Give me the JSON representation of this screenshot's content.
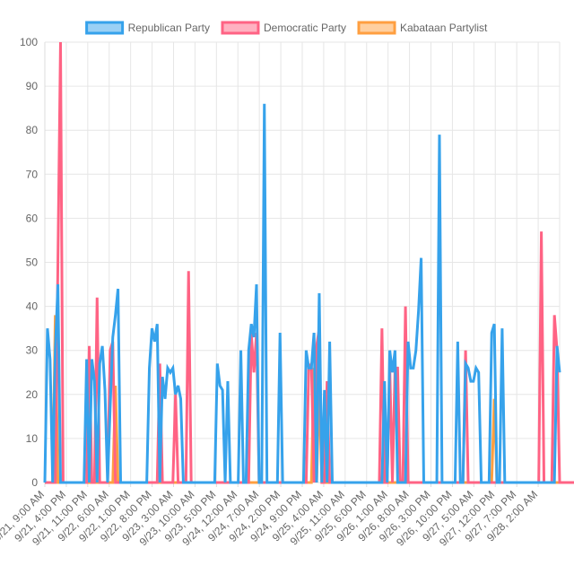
{
  "chart_data": {
    "type": "line",
    "title": "",
    "xlabel": "",
    "ylabel": "",
    "ylim": [
      0,
      100
    ],
    "yticks": [
      0,
      10,
      20,
      30,
      40,
      50,
      60,
      70,
      80,
      90,
      100
    ],
    "grid": true,
    "legend": "top",
    "x_tick_labels": [
      "9/21, 9:00 AM",
      "9/21, 4:00 PM",
      "9/21, 11:00 PM",
      "9/22, 6:00 AM",
      "9/22, 1:00 PM",
      "9/22, 8:00 PM",
      "9/23, 3:00 AM",
      "9/23, 10:00 AM",
      "9/23, 5:00 PM",
      "9/24, 12:00 AM",
      "9/24, 7:00 AM",
      "9/24, 2:00 PM",
      "9/24, 9:00 PM",
      "9/25, 4:00 AM",
      "9/25, 11:00 AM",
      "9/25, 6:00 PM",
      "9/26, 1:00 AM",
      "9/26, 8:00 AM",
      "9/26, 3:00 PM",
      "9/26, 10:00 PM",
      "9/27, 5:00 AM",
      "9/27, 12:00 PM",
      "9/27, 7:00 PM",
      "9/28, 2:00 AM"
    ],
    "series": [
      {
        "name": "Republican Party",
        "color": "#36a2eb",
        "fill": "#9ad0f5",
        "values": [
          0,
          35,
          28,
          0,
          30,
          45,
          0,
          0,
          0,
          0,
          0,
          0,
          0,
          0,
          0,
          0,
          28,
          0,
          28,
          23,
          0,
          27,
          31,
          21,
          0,
          17,
          33,
          38,
          44,
          0,
          0,
          0,
          0,
          0,
          0,
          0,
          0,
          0,
          0,
          0,
          26,
          35,
          32,
          36,
          0,
          24,
          19,
          26,
          25,
          26,
          20,
          22,
          19,
          0,
          0,
          0,
          0,
          0,
          0,
          0,
          0,
          0,
          0,
          0,
          0,
          0,
          27,
          22,
          21,
          0,
          23,
          0,
          0,
          0,
          0,
          30,
          0,
          0,
          30,
          36,
          33,
          45,
          0,
          0,
          86,
          0,
          0,
          0,
          0,
          0,
          34,
          0,
          0,
          0,
          0,
          0,
          0,
          0,
          0,
          0,
          30,
          26,
          26,
          34,
          0,
          43,
          0,
          21,
          0,
          32,
          0,
          0,
          0,
          0,
          0,
          0,
          0,
          0,
          0,
          0,
          0,
          0,
          0,
          0,
          0,
          0,
          0,
          0,
          0,
          0,
          23,
          0,
          30,
          25,
          30,
          0,
          0,
          0,
          0,
          32,
          26,
          26,
          30,
          39,
          51,
          0,
          0,
          0,
          0,
          0,
          0,
          79,
          0,
          0,
          0,
          0,
          0,
          0,
          32,
          0,
          0,
          27,
          26,
          23,
          23,
          26,
          25,
          0,
          0,
          0,
          0,
          34,
          36,
          0,
          0,
          35,
          0,
          0,
          0,
          0,
          0,
          0,
          0,
          0,
          0,
          0,
          0,
          0,
          0,
          0,
          0,
          0,
          0,
          0,
          0,
          0,
          31,
          25
        ]
      },
      {
        "name": "Democratic Party",
        "color": "#ff6384",
        "fill": "#ffb1c1",
        "values": [
          0,
          0,
          0,
          0,
          0,
          50,
          100,
          0,
          0,
          0,
          0,
          0,
          0,
          0,
          0,
          0,
          0,
          31,
          0,
          0,
          42,
          0,
          0,
          0,
          0,
          30,
          32,
          0,
          0,
          0,
          0,
          0,
          0,
          0,
          0,
          0,
          0,
          0,
          0,
          0,
          0,
          0,
          0,
          0,
          27,
          0,
          0,
          0,
          0,
          0,
          20,
          0,
          0,
          0,
          0,
          48,
          0,
          0,
          0,
          0,
          0,
          0,
          0,
          0,
          0,
          0,
          0,
          0,
          0,
          0,
          0,
          0,
          0,
          0,
          0,
          0,
          0,
          0,
          0,
          34,
          25,
          34,
          0,
          0,
          0,
          0,
          0,
          0,
          0,
          0,
          0,
          0,
          0,
          0,
          0,
          0,
          0,
          0,
          0,
          0,
          0,
          26,
          27,
          0,
          31,
          35,
          0,
          0,
          23,
          0,
          0,
          0,
          0,
          0,
          0,
          0,
          0,
          0,
          0,
          0,
          0,
          0,
          0,
          0,
          0,
          0,
          0,
          0,
          0,
          35,
          0,
          0,
          26,
          0,
          26,
          26,
          0,
          0,
          40,
          0,
          0,
          0,
          0,
          0,
          0,
          0,
          0,
          0,
          0,
          0,
          0,
          0,
          0,
          0,
          0,
          0,
          0,
          0,
          0,
          0,
          0,
          30,
          0,
          0,
          0,
          0,
          0,
          0,
          0,
          0,
          0,
          0,
          0,
          0,
          0,
          0,
          0,
          0,
          0,
          0,
          0,
          0,
          0,
          0,
          0,
          0,
          0,
          0,
          0,
          0,
          57,
          0,
          0,
          0,
          0,
          38,
          30,
          0,
          0,
          0,
          0,
          0,
          0,
          0
        ]
      },
      {
        "name": "Kabataan Partylist",
        "color": "#ff9f40",
        "fill": "#ffcf9f",
        "values": [
          0,
          0,
          0,
          0,
          38,
          0,
          0,
          0,
          0,
          0,
          0,
          0,
          0,
          0,
          0,
          0,
          0,
          0,
          0,
          0,
          0,
          0,
          0,
          0,
          0,
          0,
          0,
          22,
          0,
          0,
          0,
          0,
          0,
          0,
          0,
          0,
          0,
          0,
          0,
          0,
          0,
          0,
          0,
          0,
          0,
          0,
          0,
          0,
          0,
          0,
          0,
          0,
          0,
          0,
          0,
          0,
          0,
          0,
          0,
          0,
          0,
          0,
          0,
          0,
          0,
          0,
          0,
          0,
          0,
          0,
          0,
          0,
          0,
          0,
          0,
          0,
          0,
          0,
          0,
          0,
          0,
          0,
          0,
          0,
          0,
          0,
          0,
          0,
          0,
          0,
          0,
          0,
          0,
          0,
          0,
          0,
          0,
          0,
          0,
          0,
          0,
          0,
          0,
          26,
          0,
          22,
          0,
          0,
          0,
          0,
          0,
          0,
          0,
          0,
          0,
          0,
          0,
          0,
          0,
          0,
          0,
          0,
          0,
          0,
          0,
          0,
          0,
          0,
          0,
          0,
          0,
          0,
          0,
          0,
          0,
          0,
          0,
          0,
          0,
          0,
          0,
          0,
          0,
          0,
          0,
          0,
          0,
          0,
          0,
          0,
          0,
          0,
          0,
          0,
          0,
          0,
          0,
          0,
          0,
          0,
          0,
          0,
          0,
          0,
          0,
          0,
          0,
          0,
          0,
          0,
          0,
          0,
          19,
          0,
          0,
          0,
          0,
          0,
          0,
          0,
          0,
          0,
          0,
          0,
          0,
          0,
          0,
          0,
          0,
          0,
          0,
          0,
          0,
          0,
          0,
          0,
          0,
          0
        ]
      }
    ]
  }
}
